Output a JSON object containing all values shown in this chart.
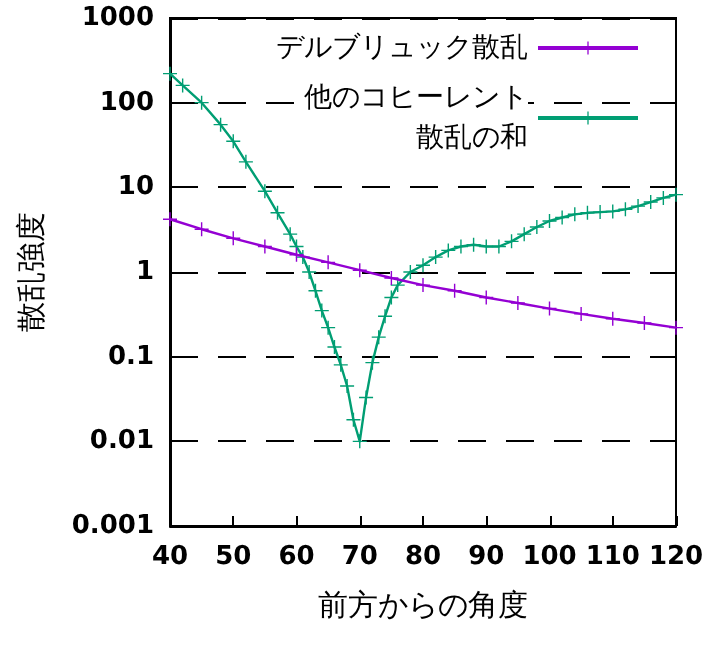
{
  "chart_data": {
    "type": "line",
    "xlabel": "前方からの角度",
    "ylabel": "散乱強度",
    "log": "y",
    "grid": "y",
    "legend": "top right",
    "xlim": [
      40,
      120
    ],
    "xticks": [
      40,
      50,
      60,
      70,
      80,
      90,
      100,
      110,
      120
    ],
    "ylim": [
      0.001,
      1000
    ],
    "yticks": [
      0.001,
      0.01,
      0.1,
      1,
      10,
      100,
      1000
    ],
    "series": [
      {
        "name": "デルブリュック散乱",
        "color": "#9400d3",
        "marker": "cross",
        "x": [
          40,
          45,
          50,
          55,
          60,
          65,
          70,
          75,
          80,
          85,
          90,
          95,
          100,
          105,
          110,
          115,
          120
        ],
        "values": [
          4.2,
          3.2,
          2.5,
          2.0,
          1.6,
          1.3,
          1.05,
          0.85,
          0.7,
          0.6,
          0.5,
          0.43,
          0.37,
          0.32,
          0.28,
          0.25,
          0.22
        ]
      },
      {
        "name": "他のコヒーレント散乱の和",
        "color": "#009e73",
        "marker": "cross",
        "x": [
          40,
          42,
          45,
          48,
          50,
          52,
          55,
          57,
          59,
          60,
          61,
          62,
          63,
          64,
          65,
          66,
          67,
          68,
          69,
          70,
          71,
          72,
          73,
          74,
          75,
          76,
          78,
          80,
          82,
          84,
          86,
          88,
          90,
          92,
          94,
          96,
          98,
          100,
          102,
          104,
          106,
          108,
          110,
          112,
          114,
          116,
          118,
          120
        ],
        "values": [
          220,
          160,
          100,
          55,
          35,
          20,
          9,
          5,
          2.8,
          2.0,
          1.5,
          1.0,
          0.6,
          0.35,
          0.22,
          0.13,
          0.08,
          0.045,
          0.018,
          0.01,
          0.033,
          0.085,
          0.17,
          0.3,
          0.5,
          0.7,
          1.0,
          1.2,
          1.5,
          1.8,
          2.0,
          2.1,
          2.0,
          2.0,
          2.3,
          2.8,
          3.4,
          4.0,
          4.4,
          4.8,
          5.0,
          5.1,
          5.2,
          5.5,
          6.0,
          6.7,
          7.5,
          8.2
        ]
      }
    ]
  }
}
